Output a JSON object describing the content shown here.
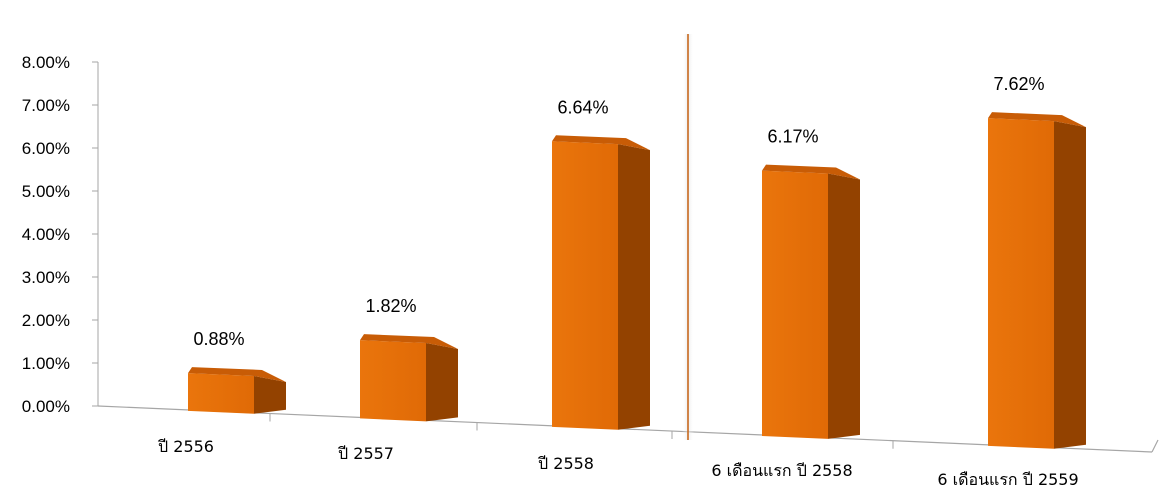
{
  "chart_data": {
    "type": "bar",
    "categories": [
      "ปี 2556",
      "ปี 2557",
      "ปี 2558",
      "6 เดือนแรก ปี 2558",
      "6 เดือนแรก ปี 2559"
    ],
    "values": [
      0.88,
      1.82,
      6.64,
      6.17,
      7.62
    ],
    "data_labels": [
      "0.88%",
      "1.82%",
      "6.64%",
      "6.17%",
      "7.62%"
    ],
    "y_ticks": [
      "0.00%",
      "1.00%",
      "2.00%",
      "3.00%",
      "4.00%",
      "5.00%",
      "6.00%",
      "7.00%",
      "8.00%"
    ],
    "ylim": [
      0,
      8
    ],
    "title": "",
    "xlabel": "",
    "ylabel": "",
    "grid": false,
    "legend": "none",
    "bar_color": "#E8710A",
    "bar_side_color": "#934200",
    "bar_top_color": "#C85C06",
    "separator_color": "#C8691E",
    "axis_color": "#A6A6A6"
  }
}
